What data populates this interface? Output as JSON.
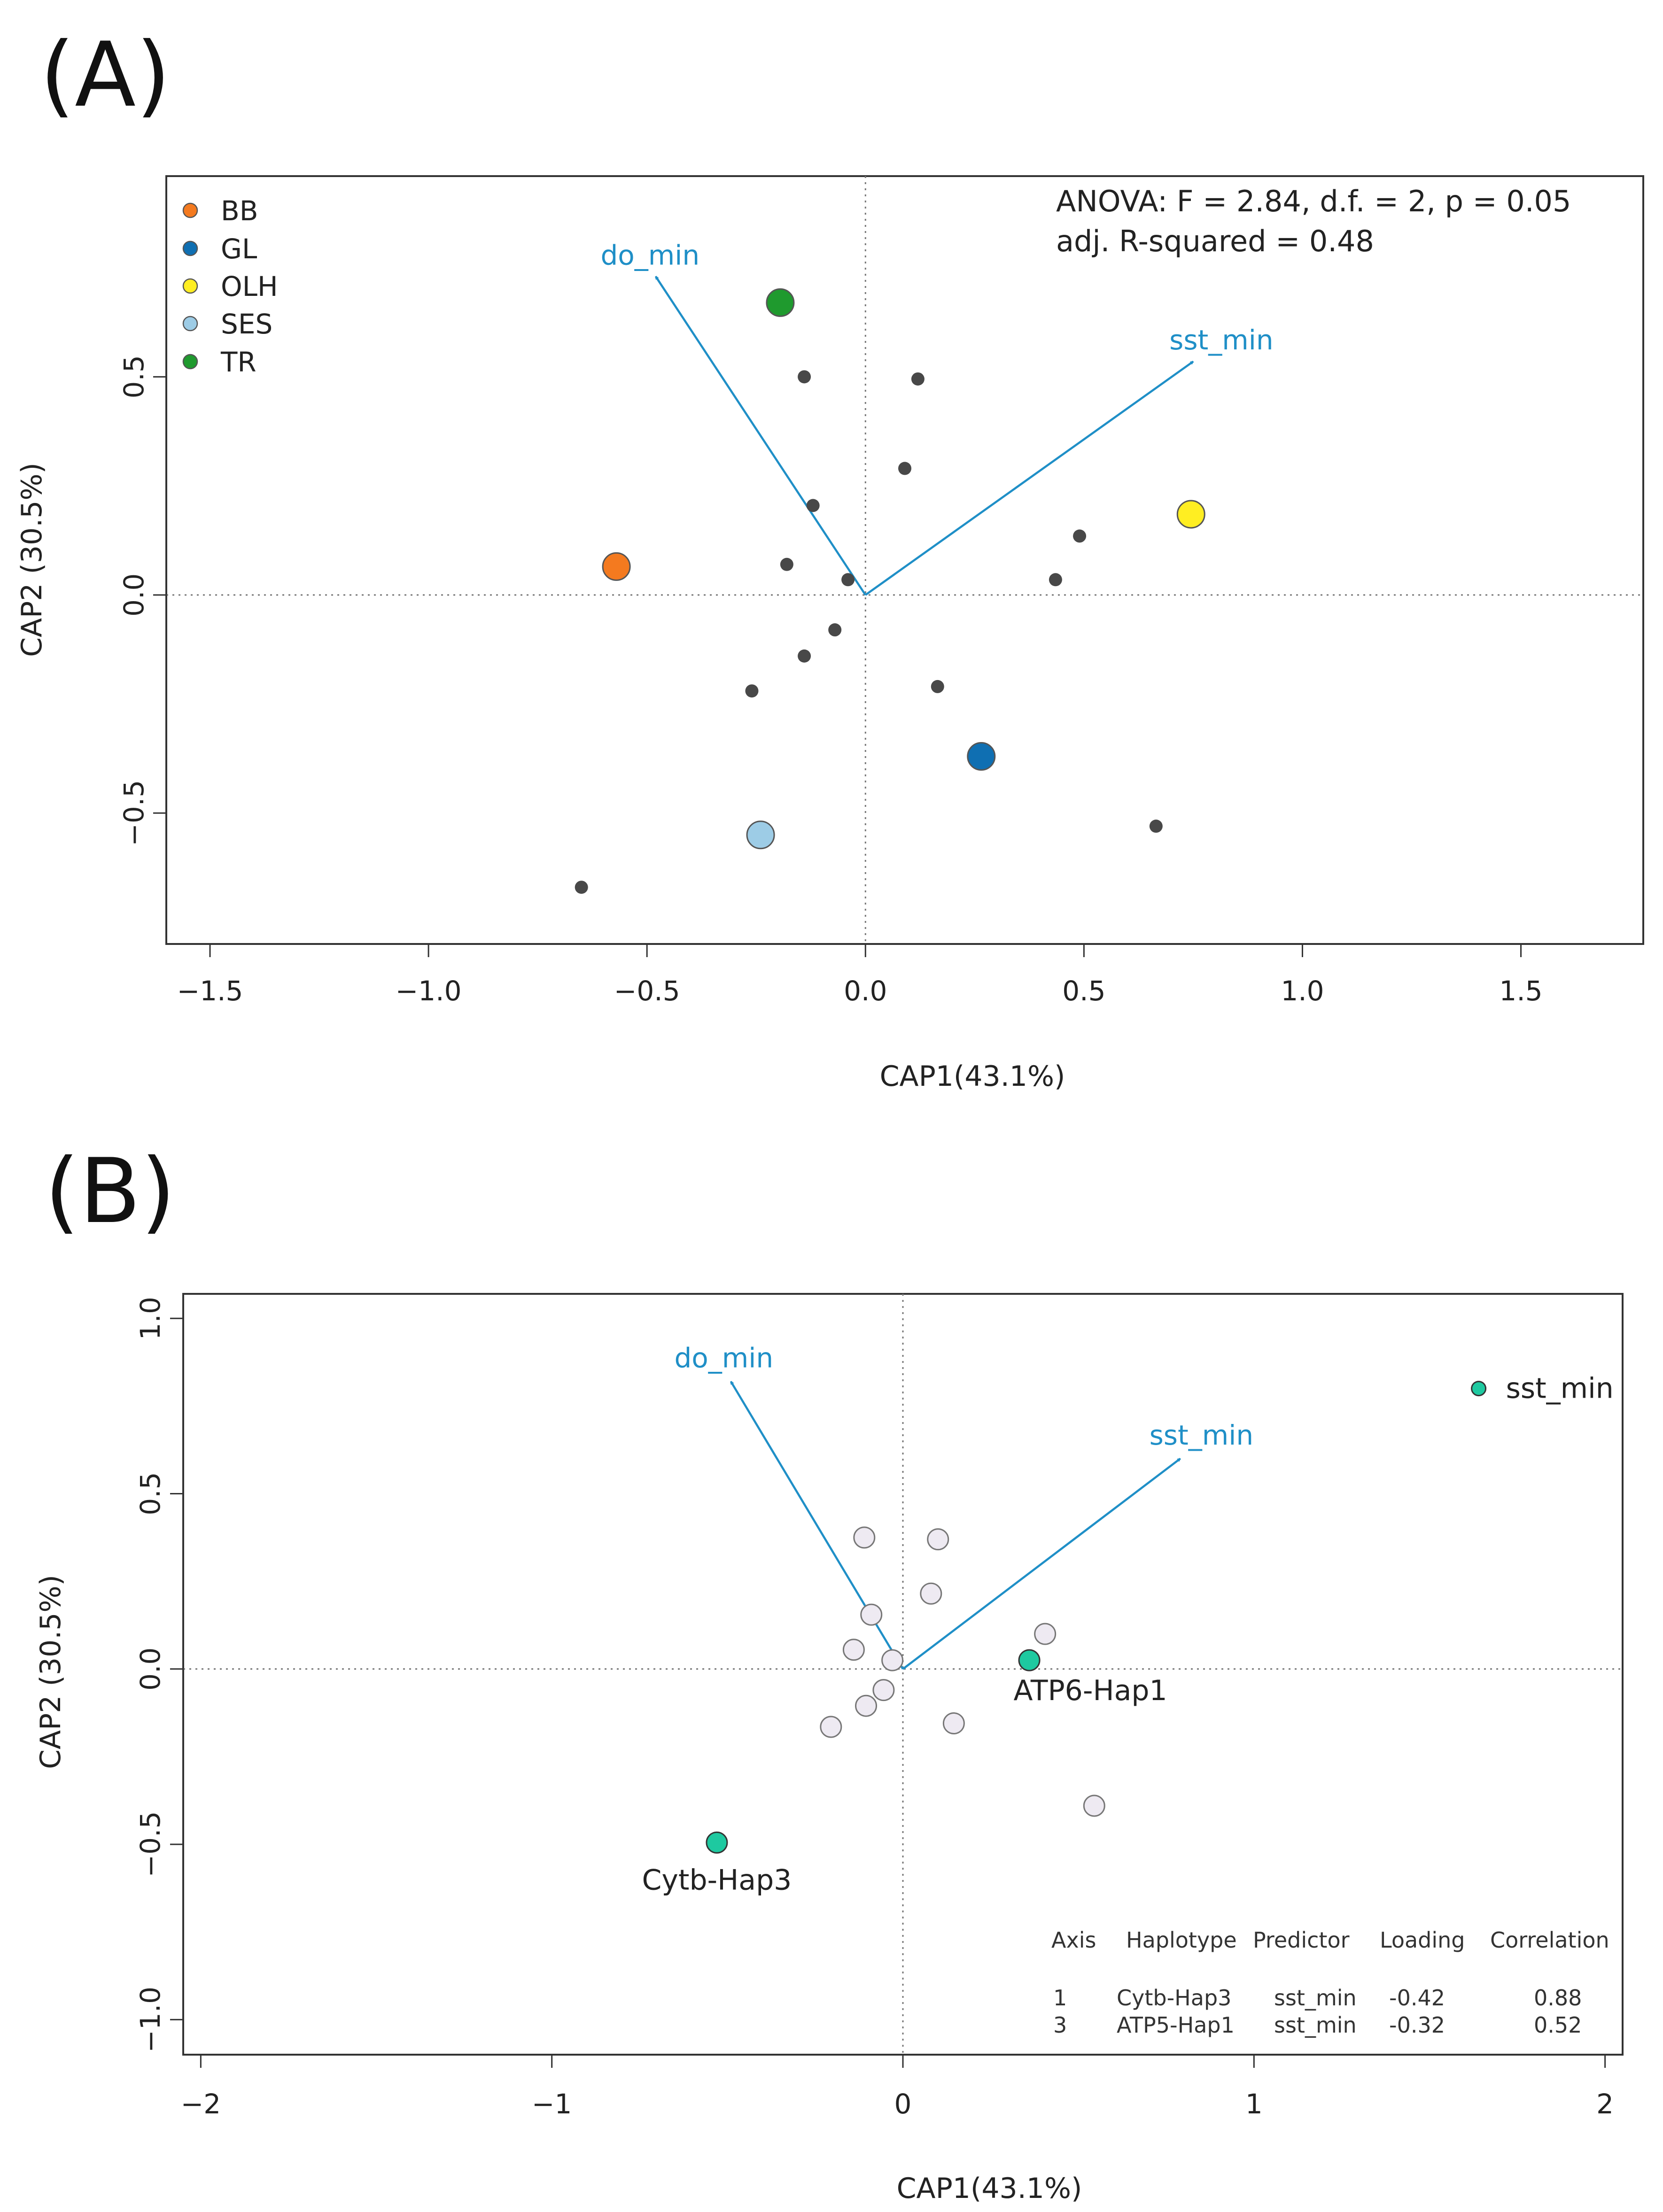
{
  "chart_data": [
    {
      "panel": "(A)",
      "type": "scatter",
      "xlabel": "CAP1(43.1%)",
      "ylabel": "CAP2 (30.5%)",
      "xlim": [
        -1.6,
        1.78
      ],
      "ylim": [
        -0.8,
        0.96
      ],
      "xticks": [
        -1.5,
        -1.0,
        -0.5,
        0.0,
        0.5,
        1.0,
        1.5
      ],
      "xtick_labels": [
        "−1.5",
        "−1.0",
        "−0.5",
        "0.0",
        "0.5",
        "1.0",
        "1.5"
      ],
      "yticks": [
        -0.5,
        0.0,
        0.5
      ],
      "ytick_labels": [
        "−0.5",
        "0.0",
        "0.5"
      ],
      "reference_lines": {
        "x": 0,
        "y": 0,
        "style": "dotted"
      },
      "legend": {
        "position": "top-left",
        "items": [
          {
            "label": "BB",
            "color": "#f47a1f"
          },
          {
            "label": "GL",
            "color": "#0f6fb2"
          },
          {
            "label": "OLH",
            "color": "#ffee22"
          },
          {
            "label": "SES",
            "color": "#9dcce6"
          },
          {
            "label": "TR",
            "color": "#1f9a2e"
          }
        ]
      },
      "annotation": [
        "ANOVA: F = 2.84, d.f. = 2, p = 0.05",
        "adj. R-squared = 0.48"
      ],
      "sites": [
        {
          "label": "BB",
          "x": -0.57,
          "y": 0.065,
          "color": "#f47a1f"
        },
        {
          "label": "GL",
          "x": 0.265,
          "y": -0.37,
          "color": "#0f6fb2"
        },
        {
          "label": "OLH",
          "x": 0.745,
          "y": 0.185,
          "color": "#ffee22"
        },
        {
          "label": "SES",
          "x": -0.24,
          "y": -0.55,
          "color": "#9dcce6"
        },
        {
          "label": "TR",
          "x": -0.195,
          "y": 0.67,
          "color": "#1f9a2e"
        }
      ],
      "points": [
        {
          "x": -0.14,
          "y": 0.5
        },
        {
          "x": 0.12,
          "y": 0.495
        },
        {
          "x": 0.09,
          "y": 0.29
        },
        {
          "x": -0.12,
          "y": 0.205
        },
        {
          "x": 0.49,
          "y": 0.135
        },
        {
          "x": -0.18,
          "y": 0.07
        },
        {
          "x": -0.04,
          "y": 0.035
        },
        {
          "x": 0.435,
          "y": 0.035
        },
        {
          "x": -0.07,
          "y": -0.08
        },
        {
          "x": -0.14,
          "y": -0.14
        },
        {
          "x": 0.165,
          "y": -0.21
        },
        {
          "x": -0.26,
          "y": -0.22
        },
        {
          "x": 0.665,
          "y": -0.53
        },
        {
          "x": -0.65,
          "y": -0.67
        }
      ],
      "vectors": [
        {
          "label": "do_min",
          "x": -0.48,
          "y": 0.73
        },
        {
          "label": "sst_min",
          "x": 0.75,
          "y": 0.535
        }
      ],
      "vector_color": "#1f8fc7"
    },
    {
      "panel": "(B)",
      "type": "scatter",
      "xlabel": "CAP1(43.1%)",
      "ylabel": "CAP2 (30.5%)",
      "xlim": [
        -2.05,
        2.05
      ],
      "ylim": [
        -1.1,
        1.07
      ],
      "xticks": [
        -2,
        -1,
        0,
        1,
        2
      ],
      "xtick_labels": [
        "−2",
        "−1",
        "0",
        "1",
        "2"
      ],
      "yticks": [
        -1.0,
        -0.5,
        0.0,
        0.5,
        1.0
      ],
      "ytick_labels": [
        "−1.0",
        "−0.5",
        "0.0",
        "0.5",
        "1.0"
      ],
      "reference_lines": {
        "x": 0,
        "y": 0,
        "style": "dotted"
      },
      "points": [
        {
          "x": -0.11,
          "y": 0.375
        },
        {
          "x": 0.1,
          "y": 0.37
        },
        {
          "x": 0.08,
          "y": 0.215
        },
        {
          "x": -0.09,
          "y": 0.155
        },
        {
          "x": 0.405,
          "y": 0.1
        },
        {
          "x": -0.14,
          "y": 0.055
        },
        {
          "x": -0.03,
          "y": 0.025
        },
        {
          "x": -0.055,
          "y": -0.06
        },
        {
          "x": -0.105,
          "y": -0.105
        },
        {
          "x": -0.205,
          "y": -0.165
        },
        {
          "x": 0.145,
          "y": -0.155
        },
        {
          "x": 0.545,
          "y": -0.39
        }
      ],
      "highlighted": [
        {
          "label": "ATP6-Hap1",
          "x": 0.36,
          "y": 0.025,
          "color": "#1ec9a0"
        },
        {
          "label": "Cytb-Hap3",
          "x": -0.53,
          "y": -0.495,
          "color": "#1ec9a0"
        },
        {
          "label": "sst_min",
          "x": 1.64,
          "y": 0.8,
          "color": "#1ec9a0"
        }
      ],
      "vectors": [
        {
          "label": "do_min",
          "x": -0.49,
          "y": 0.82
        },
        {
          "label": "sst_min",
          "x": 0.79,
          "y": 0.6
        }
      ],
      "vector_color": "#1f8fc7",
      "table": {
        "columns": [
          "Axis",
          "Haplotype",
          "Predictor",
          "Loading",
          "Correlation"
        ],
        "rows": [
          [
            "1",
            "Cytb-Hap3",
            "sst_min",
            "-0.42",
            "0.88"
          ],
          [
            "3",
            "ATP5-Hap1",
            "sst_min",
            "-0.32",
            "0.52"
          ]
        ]
      }
    }
  ]
}
